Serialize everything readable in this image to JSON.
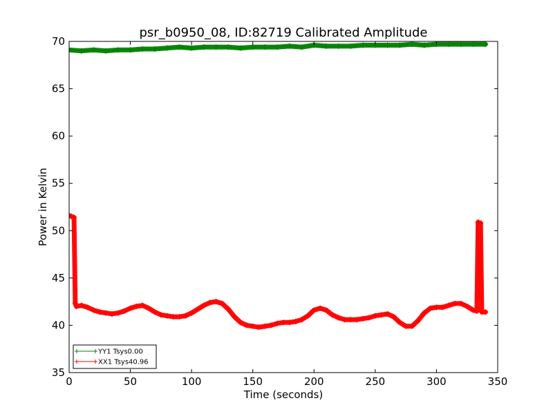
{
  "chart_data": {
    "type": "line",
    "title": "psr_b0950_08, ID:82719 Calibrated Amplitude",
    "xlabel": "Time (seconds)",
    "ylabel": "Power in Kelvin",
    "xlim": [
      0,
      350
    ],
    "ylim": [
      35,
      70
    ],
    "xticks": [
      0,
      50,
      100,
      150,
      200,
      250,
      300,
      350
    ],
    "yticks": [
      35,
      40,
      45,
      50,
      55,
      60,
      65,
      70
    ],
    "grid": false,
    "legend_position": "lower-left",
    "series": [
      {
        "name": "YY1 Tsys0.00",
        "color": "#008000",
        "marker": "+",
        "x": [
          0,
          10,
          20,
          30,
          40,
          50,
          60,
          70,
          80,
          90,
          100,
          110,
          120,
          130,
          140,
          150,
          160,
          170,
          180,
          190,
          200,
          210,
          220,
          230,
          240,
          250,
          260,
          270,
          280,
          290,
          300,
          310,
          320,
          330,
          340
        ],
        "y": [
          69.1,
          69.0,
          69.1,
          69.0,
          69.1,
          69.1,
          69.2,
          69.2,
          69.3,
          69.4,
          69.3,
          69.4,
          69.4,
          69.4,
          69.3,
          69.4,
          69.4,
          69.4,
          69.5,
          69.4,
          69.6,
          69.5,
          69.5,
          69.5,
          69.6,
          69.6,
          69.6,
          69.6,
          69.7,
          69.6,
          69.7,
          69.7,
          69.7,
          69.7,
          69.7
        ]
      },
      {
        "name": "XX1 Tsys40.96",
        "color": "#ff0000",
        "marker": "+",
        "x": [
          0,
          2,
          4,
          5,
          6,
          10,
          15,
          20,
          25,
          30,
          35,
          40,
          45,
          50,
          55,
          60,
          65,
          70,
          75,
          80,
          85,
          90,
          95,
          100,
          105,
          110,
          115,
          120,
          125,
          130,
          135,
          140,
          145,
          150,
          155,
          160,
          165,
          170,
          175,
          180,
          185,
          190,
          195,
          200,
          205,
          210,
          215,
          220,
          225,
          230,
          235,
          240,
          245,
          250,
          255,
          260,
          265,
          270,
          275,
          280,
          285,
          290,
          295,
          300,
          305,
          310,
          315,
          320,
          325,
          330,
          333,
          334,
          335,
          336,
          337,
          340
        ],
        "y": [
          51.6,
          51.5,
          51.4,
          42.3,
          42.0,
          42.1,
          41.9,
          41.6,
          41.4,
          41.3,
          41.2,
          41.3,
          41.5,
          41.8,
          42.0,
          42.1,
          41.8,
          41.4,
          41.1,
          41.0,
          40.9,
          40.9,
          41.0,
          41.3,
          41.7,
          42.1,
          42.4,
          42.5,
          42.3,
          41.7,
          40.9,
          40.3,
          40.0,
          39.9,
          39.8,
          39.9,
          40.0,
          40.2,
          40.3,
          40.3,
          40.4,
          40.6,
          41.0,
          41.6,
          41.8,
          41.6,
          41.1,
          40.8,
          40.6,
          40.6,
          40.6,
          40.7,
          40.8,
          41.0,
          41.1,
          41.2,
          40.9,
          40.3,
          39.9,
          39.9,
          40.5,
          41.3,
          41.8,
          41.9,
          41.9,
          42.1,
          42.3,
          42.3,
          42.0,
          41.6,
          41.5,
          50.9,
          43.0,
          50.8,
          41.4,
          41.4
        ]
      }
    ]
  }
}
